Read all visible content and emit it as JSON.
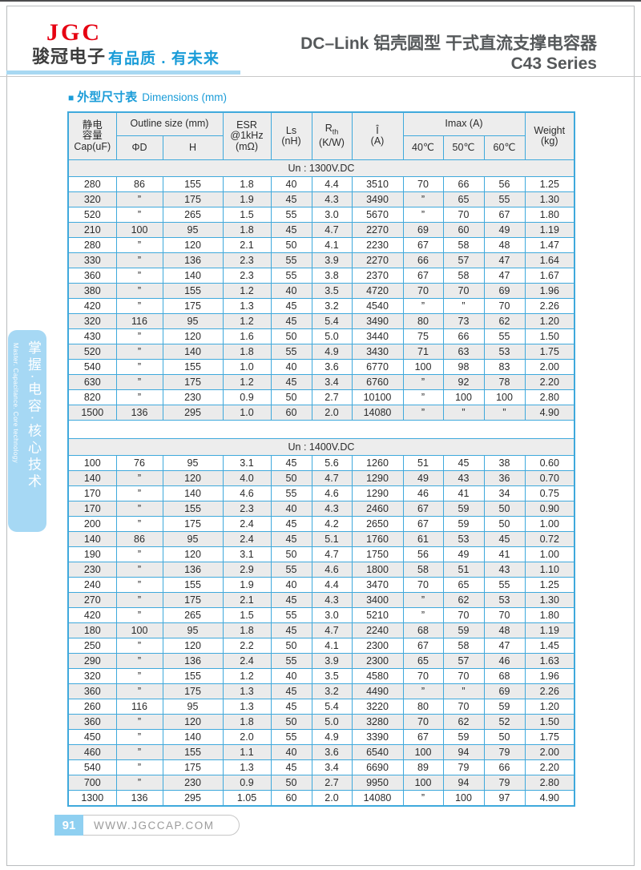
{
  "header": {
    "logo_text": "JGC",
    "company_cn": "骏冠电子",
    "slogan": "有品质 . 有未来",
    "title_line1": "DC–Link 铝壳圆型  干式直流支撑电容器",
    "title_line2": "C43 Series"
  },
  "section_title": {
    "marker": "■",
    "cn": "外型尺寸表",
    "en": "Dimensions  (mm)"
  },
  "table": {
    "headers": {
      "cap": [
        "静电",
        "容量",
        "Cap(uF)"
      ],
      "outline": "Outline size (mm)",
      "phi_d": "ΦD",
      "h": "H",
      "esr": [
        "ESR",
        "@1kHz",
        "(mΩ)"
      ],
      "ls": [
        "Ls",
        "(nH)"
      ],
      "rth": {
        "main": "R",
        "sub": "th",
        "unit": "(K/W)"
      },
      "i_peak": [
        "Î",
        "(A)"
      ],
      "imax": "Imax (A)",
      "temps": [
        "40℃",
        "50℃",
        "60℃"
      ],
      "weight": [
        "Weight",
        "(kg)"
      ]
    },
    "sections": [
      {
        "label": "Un : 1300V.DC",
        "rows": [
          [
            "280",
            "86",
            "155",
            "1.8",
            "40",
            "4.4",
            "3510",
            "70",
            "66",
            "56",
            "1.25"
          ],
          [
            "320",
            "”",
            "175",
            "1.9",
            "45",
            "4.3",
            "3490",
            "”",
            "65",
            "55",
            "1.30"
          ],
          [
            "520",
            "”",
            "265",
            "1.5",
            "55",
            "3.0",
            "5670",
            "”",
            "70",
            "67",
            "1.80"
          ],
          [
            "210",
            "100",
            "95",
            "1.8",
            "45",
            "4.7",
            "2270",
            "69",
            "60",
            "49",
            "1.19"
          ],
          [
            "280",
            "”",
            "120",
            "2.1",
            "50",
            "4.1",
            "2230",
            "67",
            "58",
            "48",
            "1.47"
          ],
          [
            "330",
            "”",
            "136",
            "2.3",
            "55",
            "3.9",
            "2270",
            "66",
            "57",
            "47",
            "1.64"
          ],
          [
            "360",
            "”",
            "140",
            "2.3",
            "55",
            "3.8",
            "2370",
            "67",
            "58",
            "47",
            "1.67"
          ],
          [
            "380",
            "”",
            "155",
            "1.2",
            "40",
            "3.5",
            "4720",
            "70",
            "70",
            "69",
            "1.96"
          ],
          [
            "420",
            "”",
            "175",
            "1.3",
            "45",
            "3.2",
            "4540",
            "”",
            "”",
            "70",
            "2.26"
          ],
          [
            "320",
            "116",
            "95",
            "1.2",
            "45",
            "5.4",
            "3490",
            "80",
            "73",
            "62",
            "1.20"
          ],
          [
            "430",
            "”",
            "120",
            "1.6",
            "50",
            "5.0",
            "3440",
            "75",
            "66",
            "55",
            "1.50"
          ],
          [
            "520",
            "”",
            "140",
            "1.8",
            "55",
            "4.9",
            "3430",
            "71",
            "63",
            "53",
            "1.75"
          ],
          [
            "540",
            "”",
            "155",
            "1.0",
            "40",
            "3.6",
            "6770",
            "100",
            "98",
            "83",
            "2.00"
          ],
          [
            "630",
            "”",
            "175",
            "1.2",
            "45",
            "3.4",
            "6760",
            "”",
            "92",
            "78",
            "2.20"
          ],
          [
            "820",
            "”",
            "230",
            "0.9",
            "50",
            "2.7",
            "10100",
            "”",
            "100",
            "100",
            "2.80"
          ],
          [
            "1500",
            "136",
            "295",
            "1.0",
            "60",
            "2.0",
            "14080",
            "”",
            "”",
            "”",
            "4.90"
          ]
        ]
      },
      {
        "label": "Un : 1400V.DC",
        "rows": [
          [
            "100",
            "76",
            "95",
            "3.1",
            "45",
            "5.6",
            "1260",
            "51",
            "45",
            "38",
            "0.60"
          ],
          [
            "140",
            "”",
            "120",
            "4.0",
            "50",
            "4.7",
            "1290",
            "49",
            "43",
            "36",
            "0.70"
          ],
          [
            "170",
            "”",
            "140",
            "4.6",
            "55",
            "4.6",
            "1290",
            "46",
            "41",
            "34",
            "0.75"
          ],
          [
            "170",
            "”",
            "155",
            "2.3",
            "40",
            "4.3",
            "2460",
            "67",
            "59",
            "50",
            "0.90"
          ],
          [
            "200",
            "”",
            "175",
            "2.4",
            "45",
            "4.2",
            "2650",
            "67",
            "59",
            "50",
            "1.00"
          ],
          [
            "140",
            "86",
            "95",
            "2.4",
            "45",
            "5.1",
            "1760",
            "61",
            "53",
            "45",
            "0.72"
          ],
          [
            "190",
            "”",
            "120",
            "3.1",
            "50",
            "4.7",
            "1750",
            "56",
            "49",
            "41",
            "1.00"
          ],
          [
            "230",
            "”",
            "136",
            "2.9",
            "55",
            "4.6",
            "1800",
            "58",
            "51",
            "43",
            "1.10"
          ],
          [
            "240",
            "”",
            "155",
            "1.9",
            "40",
            "4.4",
            "3470",
            "70",
            "65",
            "55",
            "1.25"
          ],
          [
            "270",
            "”",
            "175",
            "2.1",
            "45",
            "4.3",
            "3400",
            "”",
            "62",
            "53",
            "1.30"
          ],
          [
            "420",
            "”",
            "265",
            "1.5",
            "55",
            "3.0",
            "5210",
            "”",
            "70",
            "70",
            "1.80"
          ],
          [
            "180",
            "100",
            "95",
            "1.8",
            "45",
            "4.7",
            "2240",
            "68",
            "59",
            "48",
            "1.19"
          ],
          [
            "250",
            "”",
            "120",
            "2.2",
            "50",
            "4.1",
            "2300",
            "67",
            "58",
            "47",
            "1.45"
          ],
          [
            "290",
            "”",
            "136",
            "2.4",
            "55",
            "3.9",
            "2300",
            "65",
            "57",
            "46",
            "1.63"
          ],
          [
            "320",
            "”",
            "155",
            "1.2",
            "40",
            "3.5",
            "4580",
            "70",
            "70",
            "68",
            "1.96"
          ],
          [
            "360",
            "”",
            "175",
            "1.3",
            "45",
            "3.2",
            "4490",
            "”",
            "”",
            "69",
            "2.26"
          ],
          [
            "260",
            "116",
            "95",
            "1.3",
            "45",
            "5.4",
            "3220",
            "80",
            "70",
            "59",
            "1.20"
          ],
          [
            "360",
            "”",
            "120",
            "1.8",
            "50",
            "5.0",
            "3280",
            "70",
            "62",
            "52",
            "1.50"
          ],
          [
            "450",
            "”",
            "140",
            "2.0",
            "55",
            "4.9",
            "3390",
            "67",
            "59",
            "50",
            "1.75"
          ],
          [
            "460",
            "”",
            "155",
            "1.1",
            "40",
            "3.6",
            "6540",
            "100",
            "94",
            "79",
            "2.00"
          ],
          [
            "540",
            "”",
            "175",
            "1.3",
            "45",
            "3.4",
            "6690",
            "89",
            "79",
            "66",
            "2.20"
          ],
          [
            "700",
            "”",
            "230",
            "0.9",
            "50",
            "2.7",
            "9950",
            "100",
            "94",
            "79",
            "2.80"
          ],
          [
            "1300",
            "136",
            "295",
            "1.05",
            "60",
            "2.0",
            "14080",
            "”",
            "100",
            "97",
            "4.90"
          ]
        ]
      }
    ]
  },
  "sidebar": {
    "cn": "掌握·电容·核心技术",
    "en": "Master. Capacitance. Core technology"
  },
  "footer": {
    "page": "91",
    "site": "WWW.JGCCAP.COM"
  },
  "colors": {
    "brand_red": "#e60012",
    "accent_blue": "#1a9cd8",
    "underline_blue": "#a8d8f2",
    "table_border": "#3fa9dc",
    "cell_gray": "#ededed",
    "alt_gray": "#ebebeb",
    "sidebar_blue": "#a6d8f4",
    "footer_blue": "#8fd0f1",
    "footer_text": "#9b9b9b",
    "title_gray": "#55585a",
    "rule_gray": "#c8c8c8",
    "page_border": "#b9bcbe",
    "top_line": "#4c4c4e"
  }
}
